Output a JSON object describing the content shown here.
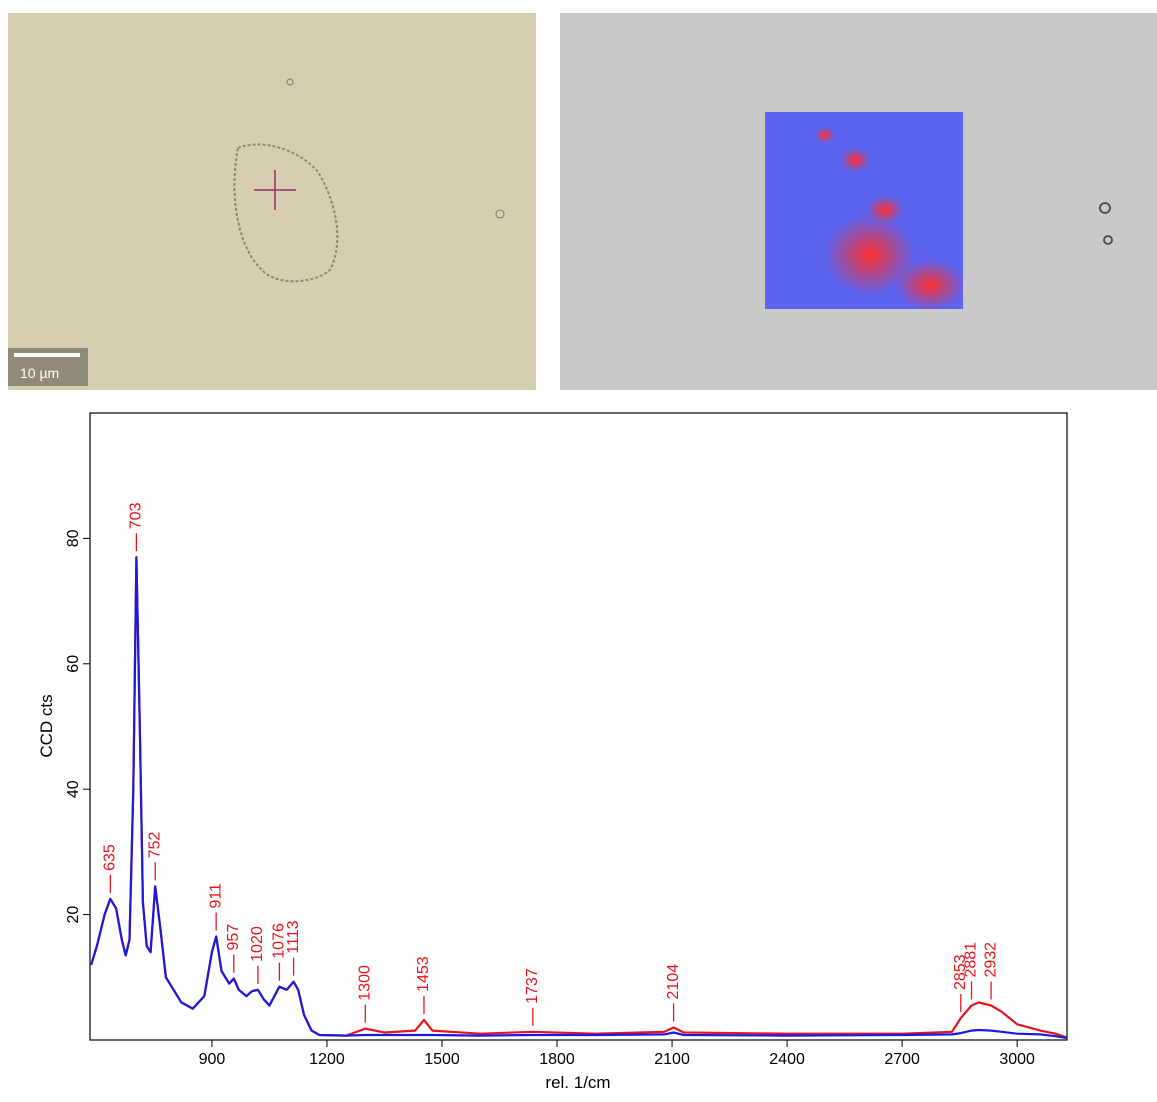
{
  "images": {
    "scale_bar": "10 µm"
  },
  "chart_data": {
    "type": "line",
    "xlabel": "rel. 1/cm",
    "ylabel": "CCD cts",
    "x": [
      585,
      600,
      620,
      635,
      650,
      665,
      675,
      685,
      695,
      703,
      712,
      720,
      730,
      740,
      752,
      765,
      780,
      800,
      820,
      850,
      880,
      900,
      911,
      925,
      945,
      957,
      970,
      990,
      1005,
      1020,
      1035,
      1050,
      1076,
      1095,
      1113,
      1125,
      1140,
      1160,
      1180,
      1250,
      1300,
      1350,
      1430,
      1453,
      1475,
      1600,
      1737,
      1900,
      2080,
      2104,
      2130,
      2400,
      2700,
      2830,
      2853,
      2881,
      2900,
      2932,
      2960,
      3000,
      3060,
      3100,
      3130
    ],
    "series": [
      {
        "color": "#e8141c",
        "values": [
          12,
          15,
          20,
          22.5,
          21,
          16,
          13.5,
          16,
          40,
          77,
          50,
          22,
          15,
          14,
          24.5,
          18,
          10,
          8,
          6,
          5,
          7,
          14,
          16.5,
          11,
          9,
          9.8,
          8,
          7,
          7.8,
          8,
          6.5,
          5.5,
          8.5,
          8,
          9.3,
          8,
          4,
          1.5,
          0.8,
          0.7,
          1.8,
          1.2,
          1.5,
          3.2,
          1.5,
          1.0,
          1.3,
          1.0,
          1.3,
          2.0,
          1.2,
          1.0,
          1.0,
          1.3,
          3.5,
          5.5,
          6.0,
          5.5,
          4.5,
          2.5,
          1.5,
          1.0,
          0.4
        ]
      },
      {
        "color": "#1a1ae0",
        "values": [
          12,
          15,
          20,
          22.5,
          21,
          16,
          13.5,
          16,
          40,
          77,
          50,
          22,
          15,
          14,
          24.5,
          18,
          10,
          8,
          6,
          5,
          7,
          14,
          16.5,
          11,
          9,
          9.8,
          8,
          7,
          7.8,
          8,
          6.5,
          5.5,
          8.5,
          8,
          9.3,
          8,
          4,
          1.5,
          0.8,
          0.7,
          0.8,
          0.8,
          0.8,
          0.8,
          0.8,
          0.7,
          0.8,
          0.8,
          0.9,
          1.2,
          0.8,
          0.7,
          0.8,
          0.9,
          1.1,
          1.5,
          1.6,
          1.5,
          1.3,
          1.0,
          0.9,
          0.6,
          0.3
        ]
      }
    ],
    "peak_labels": [
      635,
      703,
      752,
      911,
      957,
      1020,
      1076,
      1113,
      1300,
      1453,
      1737,
      2104,
      2853,
      2881,
      2932
    ],
    "peak_color": "#e8141c",
    "xlim": [
      582,
      3130
    ],
    "ylim": [
      0,
      100
    ],
    "xticks": [
      900,
      1200,
      1500,
      1800,
      2100,
      2400,
      2700,
      3000
    ],
    "yticks": [
      20,
      40,
      60,
      80
    ]
  }
}
